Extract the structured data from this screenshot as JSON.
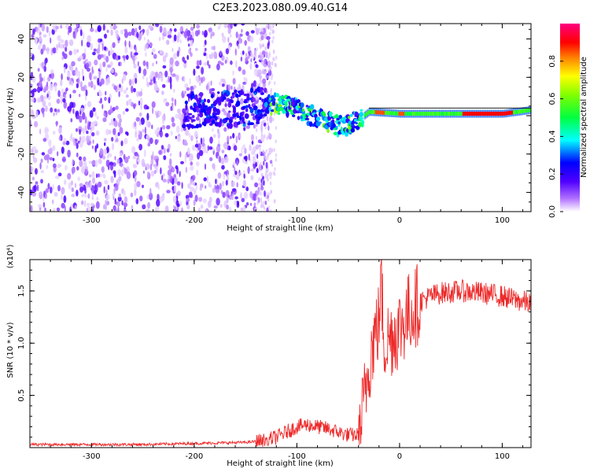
{
  "title": "C2E3.2023.080.09.40.G14",
  "chart_data": [
    {
      "type": "heatmap",
      "xlabel": "Height of straight line (km)",
      "ylabel": "Frequency (Hz)",
      "xlim": [
        -360,
        128
      ],
      "ylim": [
        -50,
        48
      ],
      "xticks": [
        -300,
        -200,
        -100,
        0,
        100
      ],
      "yticks": [
        -40,
        -20,
        0,
        20,
        40
      ],
      "colorbar": {
        "label": "Normalized spectral amplitude",
        "range": [
          0,
          1
        ],
        "ticks": [
          0.0,
          0.2,
          0.4,
          0.6,
          0.8
        ],
        "colormap": [
          "#ffffff",
          "#7f00ff",
          "#0000ff",
          "#00ffff",
          "#00ff00",
          "#ffff00",
          "#ff7f00",
          "#ff0000",
          "#ff0080"
        ]
      },
      "center_line": [
        {
          "x": -200,
          "y": 3
        },
        {
          "x": -150,
          "y": 4
        },
        {
          "x": -120,
          "y": 6
        },
        {
          "x": -100,
          "y": 4
        },
        {
          "x": -85,
          "y": 0
        },
        {
          "x": -70,
          "y": -3
        },
        {
          "x": -55,
          "y": -6
        },
        {
          "x": -40,
          "y": -2
        },
        {
          "x": -30,
          "y": 2
        },
        {
          "x": 0,
          "y": 1
        },
        {
          "x": 100,
          "y": 1
        },
        {
          "x": 128,
          "y": 3
        }
      ],
      "noise_region": {
        "x": [
          -360,
          -125
        ],
        "y": [
          -50,
          48
        ]
      },
      "peak_band": {
        "x": [
          60,
          110
        ],
        "y": 1,
        "amplitude": 0.9
      },
      "grid": false,
      "legend": "none"
    },
    {
      "type": "line",
      "xlabel": "Height of straight line (km)",
      "ylabel": "SNR (10 * v/v)",
      "y_multiplier": "(x10⁴)",
      "xlim": [
        -360,
        128
      ],
      "ylim": [
        0,
        1.8
      ],
      "xticks": [
        -300,
        -200,
        -100,
        0,
        100
      ],
      "yticks": [
        0.5,
        1.0,
        1.5
      ],
      "ytick_labels": [
        "0.5",
        "1.0",
        "1.5"
      ],
      "color": "#ee2a2a",
      "series": [
        {
          "x": [
            -360,
            -300,
            -250,
            -200,
            -150,
            -130,
            -120,
            -110,
            -100,
            -90,
            -80,
            -70,
            -60,
            -50,
            -40,
            -35,
            -30,
            -25,
            -20,
            -18,
            -15,
            -10,
            -5,
            0,
            10,
            20,
            30,
            40,
            60,
            80,
            100,
            110,
            120,
            128
          ],
          "y": [
            0.03,
            0.03,
            0.03,
            0.04,
            0.05,
            0.07,
            0.1,
            0.15,
            0.2,
            0.22,
            0.2,
            0.18,
            0.15,
            0.12,
            0.12,
            0.4,
            0.8,
            1.05,
            1.2,
            1.6,
            1.0,
            1.05,
            1.1,
            1.15,
            1.3,
            1.4,
            1.45,
            1.48,
            1.5,
            1.48,
            1.45,
            1.42,
            1.4,
            1.38
          ]
        }
      ],
      "grid": false,
      "legend": "none"
    }
  ]
}
